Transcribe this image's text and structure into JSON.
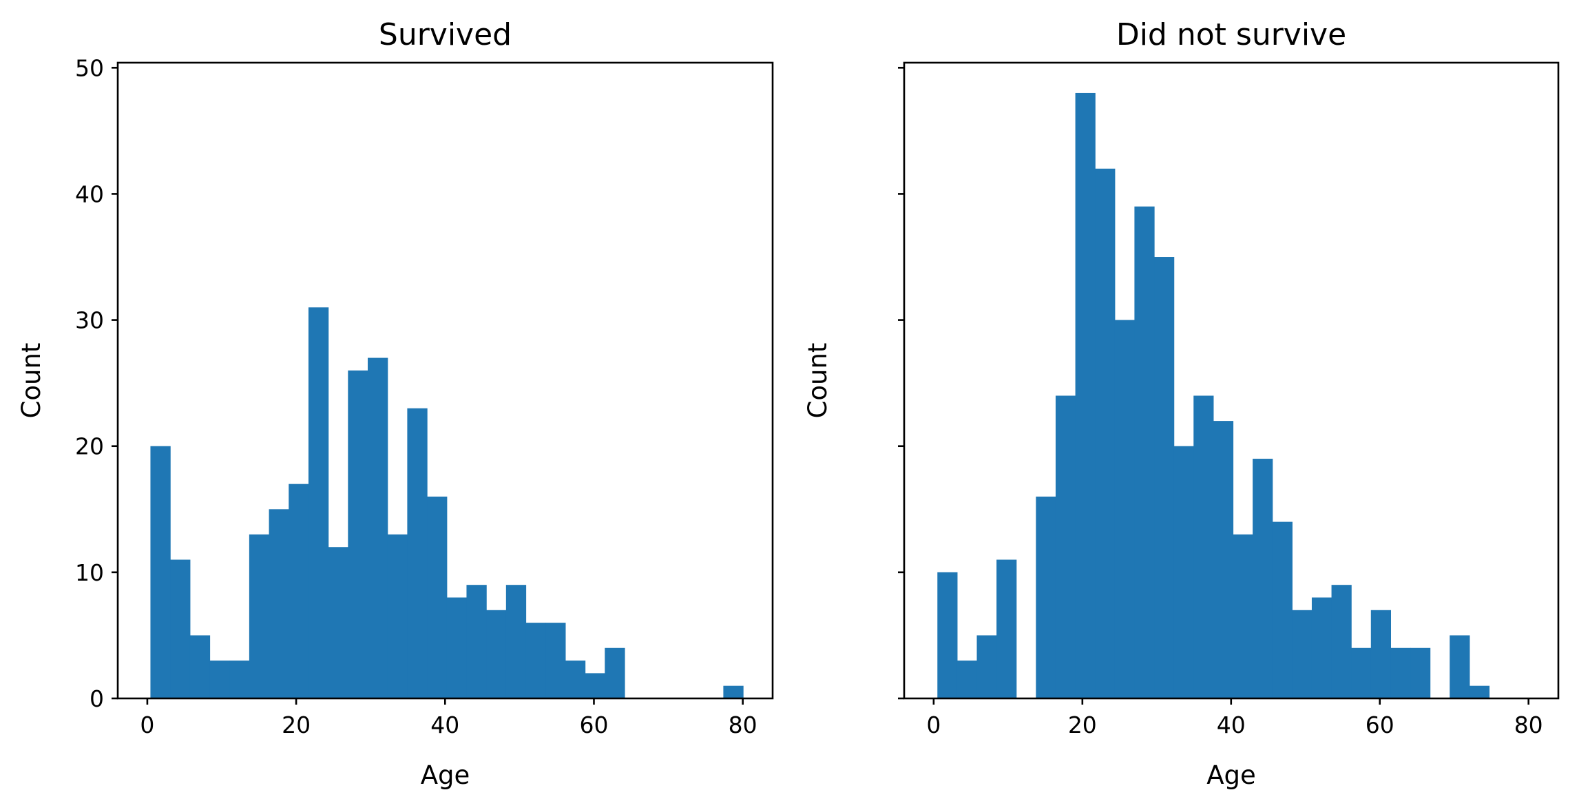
{
  "chart_data": [
    {
      "type": "bar",
      "title": "Survived",
      "xlabel": "Age",
      "ylabel": "Count",
      "xlim": [
        -3.97,
        84.01
      ],
      "ylim": [
        0,
        50.4
      ],
      "xticks": [
        "0",
        "20",
        "40",
        "60",
        "80"
      ],
      "yticks": [
        "0",
        "10",
        "20",
        "30",
        "40",
        "50"
      ],
      "show_y_ticklabels": true,
      "bin_start": 0.42,
      "bin_width": 2.654,
      "values": [
        20,
        11,
        5,
        3,
        3,
        13,
        15,
        17,
        31,
        12,
        26,
        27,
        13,
        23,
        16,
        8,
        9,
        7,
        9,
        6,
        6,
        3,
        2,
        4,
        0,
        0,
        0,
        0,
        0,
        1
      ],
      "color": "#1f77b4"
    },
    {
      "type": "bar",
      "title": "Did not survive",
      "xlabel": "Age",
      "ylabel": "Count",
      "xlim": [
        -3.97,
        84.01
      ],
      "ylim": [
        0,
        50.4
      ],
      "xticks": [
        "0",
        "20",
        "40",
        "60",
        "80"
      ],
      "yticks": [
        "0",
        "10",
        "20",
        "30",
        "40",
        "50"
      ],
      "show_y_ticklabels": false,
      "bin_start": 0.5,
      "bin_width": 2.65,
      "values": [
        10,
        3,
        5,
        11,
        0,
        16,
        24,
        48,
        42,
        30,
        39,
        35,
        20,
        24,
        22,
        13,
        19,
        14,
        7,
        8,
        9,
        4,
        7,
        4,
        4,
        0,
        5,
        1
      ],
      "color": "#1f77b4"
    }
  ]
}
